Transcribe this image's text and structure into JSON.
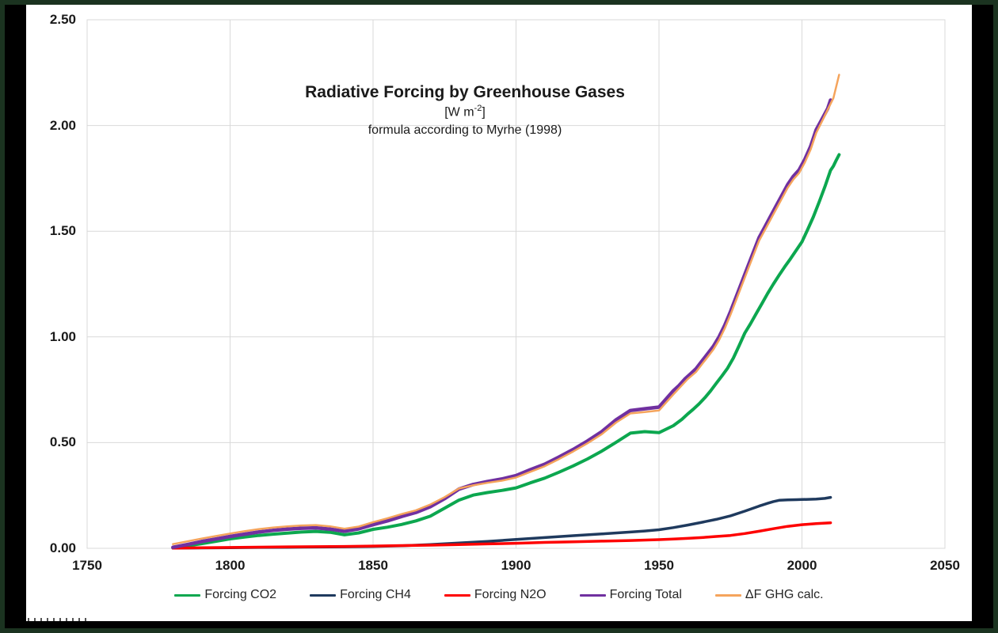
{
  "frame": {
    "outer_color": "#1b3320",
    "band_color": "#000000"
  },
  "chart_data": {
    "type": "line",
    "title": "Radiative Forcing by Greenhouse Gases",
    "units_prefix": "[W m",
    "units_exponent": "-2",
    "units_suffix": "]",
    "subtitle": "formula according to Myrhe (1998)",
    "xlim": [
      1750,
      2050
    ],
    "ylim": [
      0,
      2.5
    ],
    "grid": true,
    "gridline_color": "#d9d9d9",
    "plot_border_color": "#d9d9d9",
    "legend_position": "bottom",
    "x_ticks": [
      {
        "label": "1750",
        "value": 1750
      },
      {
        "label": "1800",
        "value": 1800
      },
      {
        "label": "1850",
        "value": 1850
      },
      {
        "label": "1900",
        "value": 1900
      },
      {
        "label": "1950",
        "value": 1950
      },
      {
        "label": "2000",
        "value": 2000
      },
      {
        "label": "2050",
        "value": 2050
      }
    ],
    "y_ticks": [
      {
        "label": "0.00",
        "value": 0.0
      },
      {
        "label": "0.50",
        "value": 0.5
      },
      {
        "label": "1.00",
        "value": 1.0
      },
      {
        "label": "1.50",
        "value": 1.5
      },
      {
        "label": "2.00",
        "value": 2.0
      },
      {
        "label": "2.50",
        "value": 2.5
      }
    ],
    "series": [
      {
        "name": "Forcing CO2",
        "color": "#0ca74f",
        "width": 4,
        "points": [
          [
            1780,
            0.003
          ],
          [
            1785,
            0.012
          ],
          [
            1790,
            0.022
          ],
          [
            1795,
            0.033
          ],
          [
            1800,
            0.045
          ],
          [
            1805,
            0.053
          ],
          [
            1810,
            0.061
          ],
          [
            1815,
            0.067
          ],
          [
            1820,
            0.072
          ],
          [
            1825,
            0.077
          ],
          [
            1830,
            0.08
          ],
          [
            1835,
            0.076
          ],
          [
            1840,
            0.064
          ],
          [
            1845,
            0.073
          ],
          [
            1850,
            0.09
          ],
          [
            1855,
            0.1
          ],
          [
            1860,
            0.113
          ],
          [
            1865,
            0.13
          ],
          [
            1870,
            0.152
          ],
          [
            1875,
            0.19
          ],
          [
            1880,
            0.228
          ],
          [
            1885,
            0.252
          ],
          [
            1890,
            0.264
          ],
          [
            1895,
            0.274
          ],
          [
            1900,
            0.286
          ],
          [
            1905,
            0.31
          ],
          [
            1910,
            0.332
          ],
          [
            1915,
            0.36
          ],
          [
            1920,
            0.39
          ],
          [
            1925,
            0.423
          ],
          [
            1930,
            0.46
          ],
          [
            1935,
            0.502
          ],
          [
            1940,
            0.545
          ],
          [
            1945,
            0.552
          ],
          [
            1950,
            0.547
          ],
          [
            1955,
            0.58
          ],
          [
            1958,
            0.61
          ],
          [
            1960,
            0.635
          ],
          [
            1962,
            0.658
          ],
          [
            1964,
            0.683
          ],
          [
            1966,
            0.712
          ],
          [
            1968,
            0.744
          ],
          [
            1970,
            0.78
          ],
          [
            1972,
            0.815
          ],
          [
            1974,
            0.852
          ],
          [
            1976,
            0.9
          ],
          [
            1978,
            0.958
          ],
          [
            1980,
            1.018
          ],
          [
            1982,
            1.062
          ],
          [
            1984,
            1.11
          ],
          [
            1986,
            1.158
          ],
          [
            1988,
            1.206
          ],
          [
            1990,
            1.25
          ],
          [
            1992,
            1.292
          ],
          [
            1994,
            1.332
          ],
          [
            1996,
            1.37
          ],
          [
            1998,
            1.41
          ],
          [
            2000,
            1.45
          ],
          [
            2002,
            1.508
          ],
          [
            2004,
            1.568
          ],
          [
            2006,
            1.638
          ],
          [
            2008,
            1.71
          ],
          [
            2010,
            1.788
          ],
          [
            2011,
            1.808
          ],
          [
            2012,
            1.836
          ],
          [
            2013,
            1.862
          ]
        ]
      },
      {
        "name": "Forcing CH4",
        "color": "#1f3a5e",
        "width": 3.5,
        "points": [
          [
            1780,
            0.001
          ],
          [
            1790,
            0.002
          ],
          [
            1800,
            0.003
          ],
          [
            1810,
            0.004
          ],
          [
            1820,
            0.005
          ],
          [
            1830,
            0.006
          ],
          [
            1840,
            0.007
          ],
          [
            1850,
            0.009
          ],
          [
            1860,
            0.012
          ],
          [
            1870,
            0.018
          ],
          [
            1880,
            0.025
          ],
          [
            1890,
            0.033
          ],
          [
            1900,
            0.042
          ],
          [
            1910,
            0.051
          ],
          [
            1920,
            0.06
          ],
          [
            1930,
            0.068
          ],
          [
            1940,
            0.077
          ],
          [
            1945,
            0.082
          ],
          [
            1950,
            0.088
          ],
          [
            1955,
            0.098
          ],
          [
            1960,
            0.11
          ],
          [
            1965,
            0.123
          ],
          [
            1970,
            0.137
          ],
          [
            1975,
            0.154
          ],
          [
            1980,
            0.176
          ],
          [
            1985,
            0.2
          ],
          [
            1988,
            0.213
          ],
          [
            1990,
            0.221
          ],
          [
            1992,
            0.227
          ],
          [
            1995,
            0.229
          ],
          [
            1998,
            0.23
          ],
          [
            2000,
            0.231
          ],
          [
            2003,
            0.232
          ],
          [
            2005,
            0.233
          ],
          [
            2008,
            0.236
          ],
          [
            2010,
            0.241
          ]
        ]
      },
      {
        "name": "Forcing N2O",
        "color": "#fe0000",
        "width": 3.5,
        "points": [
          [
            1780,
            0.001
          ],
          [
            1800,
            0.004
          ],
          [
            1820,
            0.007
          ],
          [
            1840,
            0.009
          ],
          [
            1850,
            0.011
          ],
          [
            1860,
            0.013
          ],
          [
            1870,
            0.015
          ],
          [
            1880,
            0.018
          ],
          [
            1890,
            0.021
          ],
          [
            1900,
            0.024
          ],
          [
            1910,
            0.028
          ],
          [
            1920,
            0.031
          ],
          [
            1930,
            0.034
          ],
          [
            1940,
            0.037
          ],
          [
            1950,
            0.041
          ],
          [
            1955,
            0.044
          ],
          [
            1960,
            0.047
          ],
          [
            1965,
            0.051
          ],
          [
            1970,
            0.056
          ],
          [
            1975,
            0.061
          ],
          [
            1980,
            0.07
          ],
          [
            1985,
            0.081
          ],
          [
            1990,
            0.093
          ],
          [
            1995,
            0.104
          ],
          [
            2000,
            0.112
          ],
          [
            2005,
            0.117
          ],
          [
            2010,
            0.121
          ]
        ]
      },
      {
        "name": "Forcing Total",
        "color": "#7030a0",
        "width": 4.5,
        "points": [
          [
            1780,
            0.005
          ],
          [
            1785,
            0.018
          ],
          [
            1790,
            0.032
          ],
          [
            1795,
            0.044
          ],
          [
            1800,
            0.056
          ],
          [
            1805,
            0.067
          ],
          [
            1810,
            0.077
          ],
          [
            1815,
            0.085
          ],
          [
            1820,
            0.091
          ],
          [
            1825,
            0.095
          ],
          [
            1830,
            0.097
          ],
          [
            1835,
            0.091
          ],
          [
            1840,
            0.081
          ],
          [
            1845,
            0.092
          ],
          [
            1850,
            0.112
          ],
          [
            1855,
            0.13
          ],
          [
            1860,
            0.151
          ],
          [
            1865,
            0.17
          ],
          [
            1870,
            0.197
          ],
          [
            1875,
            0.235
          ],
          [
            1880,
            0.28
          ],
          [
            1885,
            0.302
          ],
          [
            1890,
            0.316
          ],
          [
            1895,
            0.328
          ],
          [
            1900,
            0.344
          ],
          [
            1905,
            0.372
          ],
          [
            1910,
            0.398
          ],
          [
            1915,
            0.432
          ],
          [
            1920,
            0.468
          ],
          [
            1925,
            0.508
          ],
          [
            1930,
            0.552
          ],
          [
            1935,
            0.608
          ],
          [
            1940,
            0.652
          ],
          [
            1945,
            0.66
          ],
          [
            1950,
            0.668
          ],
          [
            1955,
            0.745
          ],
          [
            1957,
            0.77
          ],
          [
            1959,
            0.8
          ],
          [
            1961,
            0.825
          ],
          [
            1963,
            0.85
          ],
          [
            1965,
            0.885
          ],
          [
            1967,
            0.92
          ],
          [
            1969,
            0.955
          ],
          [
            1971,
            1.0
          ],
          [
            1973,
            1.055
          ],
          [
            1975,
            1.12
          ],
          [
            1977,
            1.19
          ],
          [
            1979,
            1.26
          ],
          [
            1981,
            1.33
          ],
          [
            1983,
            1.4
          ],
          [
            1985,
            1.47
          ],
          [
            1987,
            1.52
          ],
          [
            1989,
            1.57
          ],
          [
            1991,
            1.62
          ],
          [
            1993,
            1.67
          ],
          [
            1995,
            1.72
          ],
          [
            1997,
            1.76
          ],
          [
            1999,
            1.79
          ],
          [
            2001,
            1.84
          ],
          [
            2003,
            1.9
          ],
          [
            2005,
            1.98
          ],
          [
            2007,
            2.03
          ],
          [
            2009,
            2.08
          ],
          [
            2010,
            2.12
          ]
        ]
      },
      {
        "name": "ΔF GHG calc.",
        "color": "#f5a45c",
        "width": 2.5,
        "points": [
          [
            1780,
            0.02
          ],
          [
            1785,
            0.033
          ],
          [
            1790,
            0.046
          ],
          [
            1795,
            0.058
          ],
          [
            1800,
            0.07
          ],
          [
            1805,
            0.081
          ],
          [
            1810,
            0.091
          ],
          [
            1815,
            0.098
          ],
          [
            1820,
            0.104
          ],
          [
            1825,
            0.108
          ],
          [
            1830,
            0.11
          ],
          [
            1835,
            0.104
          ],
          [
            1840,
            0.093
          ],
          [
            1845,
            0.103
          ],
          [
            1850,
            0.124
          ],
          [
            1855,
            0.142
          ],
          [
            1860,
            0.162
          ],
          [
            1865,
            0.18
          ],
          [
            1870,
            0.207
          ],
          [
            1875,
            0.242
          ],
          [
            1880,
            0.283
          ],
          [
            1885,
            0.298
          ],
          [
            1890,
            0.31
          ],
          [
            1895,
            0.32
          ],
          [
            1900,
            0.335
          ],
          [
            1905,
            0.362
          ],
          [
            1910,
            0.388
          ],
          [
            1915,
            0.422
          ],
          [
            1920,
            0.458
          ],
          [
            1925,
            0.497
          ],
          [
            1930,
            0.54
          ],
          [
            1935,
            0.595
          ],
          [
            1940,
            0.638
          ],
          [
            1945,
            0.645
          ],
          [
            1950,
            0.652
          ],
          [
            1955,
            0.728
          ],
          [
            1960,
            0.8
          ],
          [
            1963,
            0.835
          ],
          [
            1965,
            0.87
          ],
          [
            1967,
            0.905
          ],
          [
            1969,
            0.94
          ],
          [
            1971,
            0.985
          ],
          [
            1973,
            1.04
          ],
          [
            1975,
            1.105
          ],
          [
            1977,
            1.175
          ],
          [
            1979,
            1.245
          ],
          [
            1981,
            1.315
          ],
          [
            1983,
            1.385
          ],
          [
            1985,
            1.455
          ],
          [
            1987,
            1.505
          ],
          [
            1989,
            1.555
          ],
          [
            1991,
            1.605
          ],
          [
            1993,
            1.655
          ],
          [
            1995,
            1.705
          ],
          [
            1997,
            1.745
          ],
          [
            1999,
            1.775
          ],
          [
            2001,
            1.825
          ],
          [
            2003,
            1.885
          ],
          [
            2005,
            1.965
          ],
          [
            2007,
            2.02
          ],
          [
            2009,
            2.075
          ],
          [
            2011,
            2.13
          ],
          [
            2013,
            2.24
          ]
        ]
      }
    ]
  }
}
